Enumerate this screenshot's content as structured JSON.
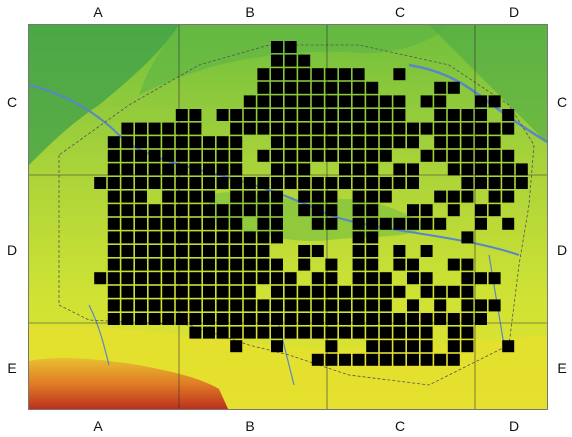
{
  "top_labels": [
    "A",
    "B",
    "C",
    "D"
  ],
  "bottom_labels": [
    "A",
    "B",
    "C",
    "D"
  ],
  "left_labels": [
    "C",
    "D",
    "E"
  ],
  "right_labels": [
    "C",
    "D",
    "E"
  ],
  "colors": {
    "terrain_low": "#2e9a4a",
    "terrain_mid": "#7ec43c",
    "terrain_high": "#d9e830",
    "terrain_peak": "#c8321e",
    "river": "#5a86c8",
    "grid_line": "#333333",
    "cell_fill": "#000000"
  },
  "occupied_cells": {
    "cols": 35,
    "rows": 24,
    "rows_map": [
      "...............xx..................",
      "...............xxx.................",
      "..............xxxxxxxx..x..........",
      "..............xxxxxxxxx....xx......",
      ".............xxxxxxxxxxxx.xx..xx...",
      "........xx.xxxxxxxxxxxxxx..xxxx.x..",
      "....xxxxxx..xxxxxxxxxxxxxxxxxxxxx..",
      "...xxxxxxxxxx..xxxxxxxxxxx.xxxxx...",
      "...xxxxxxxxxx.xxxxxxxxxx..xxxxxxx..",
      "...xxxxxxxxxx..xxx..xxx.xx..xxxxxx.",
      "..xxxxxxxxxxxxxxxxxxxxxxxx...xxxxx.",
      "...xxx.xxxx.xxxx.xxx.xxx...xxx.xx..",
      "...xxxxxxxxxxxxx.xxx.xx..xx.x.xx...",
      "...xxxxxxxxxx.xx..xx.xxxxxxx..x.x..",
      "...xxxxxxxxxxxxx.....xx......x.....",
      "...xxxxxxxxxxxx..xx..xx.x.x........",
      "...xxxxxxxxxxxxx.x.x.xx.xx..xx.....",
      "..xxxxxxxxxxxxxxx.xx.xxx.xx..xxx...",
      "...xxxxxxxxxxx.xxxxxxxxxx.xxxx.....",
      "...xxxxxxxxxxxxxxxxxxxxx.x.x.xxx...",
      "...xxxxxxxxxxxxxxxxxxxxxxxxxxxx....",
      ".........xxxxxxxxxxxxxxxxxx.xx.....",
      "............x..x...x..xxxxx.xx..x..",
      "..................xxxxxxxxxxx......"
    ]
  }
}
